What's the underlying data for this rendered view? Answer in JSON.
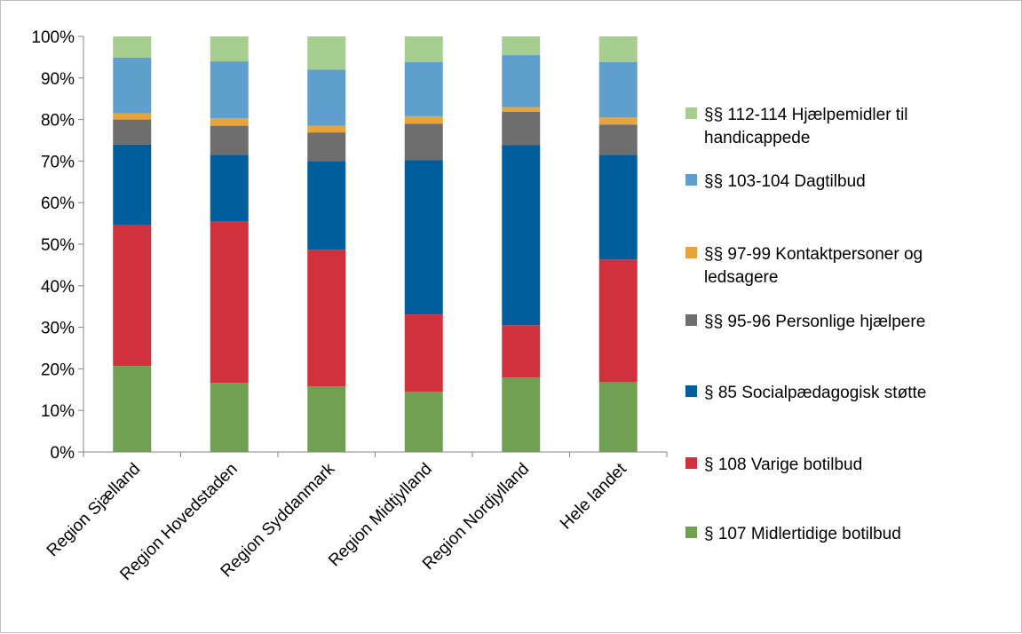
{
  "chart_data": {
    "type": "bar",
    "stacked": true,
    "percent_stacked": true,
    "categories": [
      "Region Sjælland",
      "Region Hovedstaden",
      "Region Syddanmark",
      "Region Midtjylland",
      "Region Nordjylland",
      "Hele landet"
    ],
    "series": [
      {
        "name": "§ 107 Midlertidige botilbud",
        "color": "#70a153",
        "values": [
          20.7,
          16.6,
          15.8,
          14.5,
          17.9,
          16.8
        ]
      },
      {
        "name": "§ 108 Varige botilbud",
        "color": "#d0313c",
        "values": [
          34.0,
          38.8,
          32.9,
          18.6,
          12.6,
          29.5
        ]
      },
      {
        "name": "§ 85 Socialpædagogisk støtte",
        "color": "#005e9c",
        "values": [
          19.3,
          16.1,
          21.3,
          37.1,
          43.4,
          25.2
        ]
      },
      {
        "name": "§§ 95-96 Personlige hjælpere",
        "color": "#6e6e6e",
        "values": [
          6.0,
          7.0,
          6.9,
          8.8,
          8.0,
          7.3
        ]
      },
      {
        "name": "§§ 97-99 Kontaktpersoner og ledsagere",
        "color": "#e6a43c",
        "values": [
          1.5,
          1.8,
          1.6,
          1.8,
          1.1,
          1.7
        ]
      },
      {
        "name": "§§ 103-104 Dagtilbud",
        "color": "#5f9fcd",
        "values": [
          13.4,
          13.7,
          13.5,
          13.0,
          12.5,
          13.3
        ]
      },
      {
        "name": "§§ 112-114 Hjælpemidler til handicappede",
        "color": "#a6cf8f",
        "values": [
          5.1,
          6.0,
          8.0,
          6.2,
          4.5,
          6.2
        ]
      }
    ],
    "y_ticks": [
      "0%",
      "10%",
      "20%",
      "30%",
      "40%",
      "50%",
      "60%",
      "70%",
      "80%",
      "90%",
      "100%"
    ],
    "ylim": [
      0,
      100
    ],
    "grid": false,
    "legend_position": "right",
    "title": "",
    "xlabel": "",
    "ylabel": ""
  }
}
